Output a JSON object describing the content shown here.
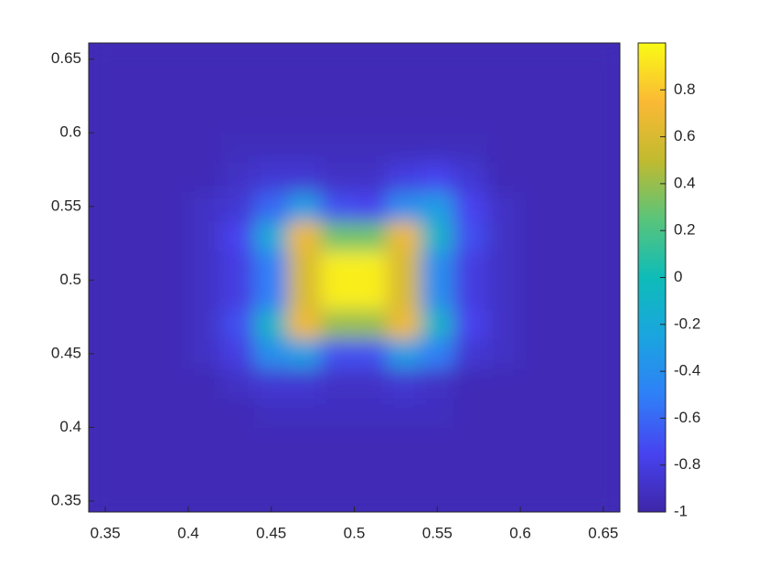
{
  "chart_data": {
    "type": "heatmap",
    "x": [
      0.35,
      0.37,
      0.39,
      0.41,
      0.43,
      0.45,
      0.47,
      0.49,
      0.51,
      0.53,
      0.55,
      0.57,
      0.59,
      0.61,
      0.63,
      0.65
    ],
    "y": [
      0.35,
      0.37,
      0.39,
      0.41,
      0.43,
      0.45,
      0.47,
      0.49,
      0.51,
      0.53,
      0.55,
      0.57,
      0.59,
      0.61,
      0.63,
      0.65
    ],
    "z": [
      [
        -0.95,
        -0.95,
        -0.95,
        -0.95,
        -0.95,
        -0.95,
        -0.95,
        -0.95,
        -0.95,
        -0.95,
        -0.95,
        -0.95,
        -0.95,
        -0.95,
        -0.95,
        -0.95
      ],
      [
        -0.95,
        -0.95,
        -0.95,
        -0.95,
        -0.95,
        -0.95,
        -0.95,
        -0.95,
        -0.95,
        -0.95,
        -0.95,
        -0.95,
        -0.95,
        -0.95,
        -0.95,
        -0.95
      ],
      [
        -0.95,
        -0.95,
        -0.95,
        -0.95,
        -0.95,
        -0.95,
        -0.95,
        -0.95,
        -0.95,
        -0.95,
        -0.95,
        -0.95,
        -0.95,
        -0.95,
        -0.95,
        -0.95
      ],
      [
        -0.95,
        -0.95,
        -0.95,
        -0.95,
        -0.95,
        -0.92,
        -0.92,
        -0.92,
        -0.92,
        -0.92,
        -0.92,
        -0.95,
        -0.95,
        -0.95,
        -0.95,
        -0.95
      ],
      [
        -0.95,
        -0.95,
        -0.95,
        -0.95,
        -0.9,
        -0.85,
        -0.85,
        -0.9,
        -0.9,
        -0.85,
        -0.9,
        -0.95,
        -0.95,
        -0.95,
        -0.95,
        -0.95
      ],
      [
        -0.95,
        -0.95,
        -0.95,
        -0.9,
        -0.8,
        -0.4,
        -0.3,
        -0.7,
        -0.7,
        -0.3,
        -0.5,
        -0.85,
        -0.9,
        -0.95,
        -0.95,
        -0.95
      ],
      [
        -0.95,
        -0.95,
        -0.95,
        -0.9,
        -0.7,
        -0.1,
        0.7,
        0.4,
        0.4,
        0.7,
        -0.1,
        -0.75,
        -0.9,
        -0.95,
        -0.95,
        -0.95
      ],
      [
        -0.95,
        -0.95,
        -0.95,
        -0.9,
        -0.8,
        -0.5,
        0.6,
        0.95,
        0.95,
        0.6,
        -0.4,
        -0.8,
        -0.9,
        -0.95,
        -0.95,
        -0.95
      ],
      [
        -0.95,
        -0.95,
        -0.95,
        -0.9,
        -0.8,
        -0.5,
        0.6,
        0.95,
        0.95,
        0.6,
        -0.4,
        -0.8,
        -0.9,
        -0.95,
        -0.95,
        -0.95
      ],
      [
        -0.95,
        -0.95,
        -0.95,
        -0.9,
        -0.75,
        -0.2,
        0.7,
        0.3,
        0.3,
        0.7,
        -0.1,
        -0.7,
        -0.9,
        -0.95,
        -0.95,
        -0.95
      ],
      [
        -0.95,
        -0.95,
        -0.95,
        -0.9,
        -0.85,
        -0.6,
        -0.3,
        -0.7,
        -0.75,
        -0.4,
        -0.3,
        -0.75,
        -0.9,
        -0.95,
        -0.95,
        -0.95
      ],
      [
        -0.95,
        -0.95,
        -0.95,
        -0.95,
        -0.9,
        -0.85,
        -0.85,
        -0.9,
        -0.9,
        -0.8,
        -0.75,
        -0.85,
        -0.95,
        -0.95,
        -0.95,
        -0.95
      ],
      [
        -0.95,
        -0.95,
        -0.95,
        -0.95,
        -0.93,
        -0.93,
        -0.93,
        -0.93,
        -0.93,
        -0.93,
        -0.93,
        -0.93,
        -0.95,
        -0.95,
        -0.95,
        -0.95
      ],
      [
        -0.95,
        -0.95,
        -0.95,
        -0.95,
        -0.95,
        -0.95,
        -0.95,
        -0.95,
        -0.95,
        -0.95,
        -0.95,
        -0.95,
        -0.95,
        -0.95,
        -0.95,
        -0.95
      ],
      [
        -0.95,
        -0.95,
        -0.95,
        -0.95,
        -0.95,
        -0.95,
        -0.95,
        -0.95,
        -0.95,
        -0.95,
        -0.95,
        -0.95,
        -0.95,
        -0.95,
        -0.95,
        -0.95
      ],
      [
        -0.95,
        -0.95,
        -0.95,
        -0.95,
        -0.95,
        -0.95,
        -0.95,
        -0.95,
        -0.95,
        -0.95,
        -0.95,
        -0.95,
        -0.95,
        -0.95,
        -0.95,
        -0.95
      ]
    ],
    "xlim": [
      0.34,
      0.66
    ],
    "ylim": [
      0.3425,
      0.661
    ],
    "xticks": [
      0.35,
      0.4,
      0.45,
      0.5,
      0.55,
      0.6,
      0.65
    ],
    "yticks": [
      0.35,
      0.4,
      0.45,
      0.5,
      0.55,
      0.6,
      0.65
    ],
    "clim": [
      -1,
      1
    ],
    "cticks": [
      -1,
      -0.8,
      -0.6,
      -0.4,
      -0.2,
      0,
      0.2,
      0.4,
      0.6,
      0.8
    ],
    "colormap": [
      "#3e26a8",
      "#4743f0",
      "#2f80f7",
      "#1aa5df",
      "#0ebcb8",
      "#5ac47a",
      "#c1ba2f",
      "#fbb935",
      "#f9fb15"
    ]
  }
}
